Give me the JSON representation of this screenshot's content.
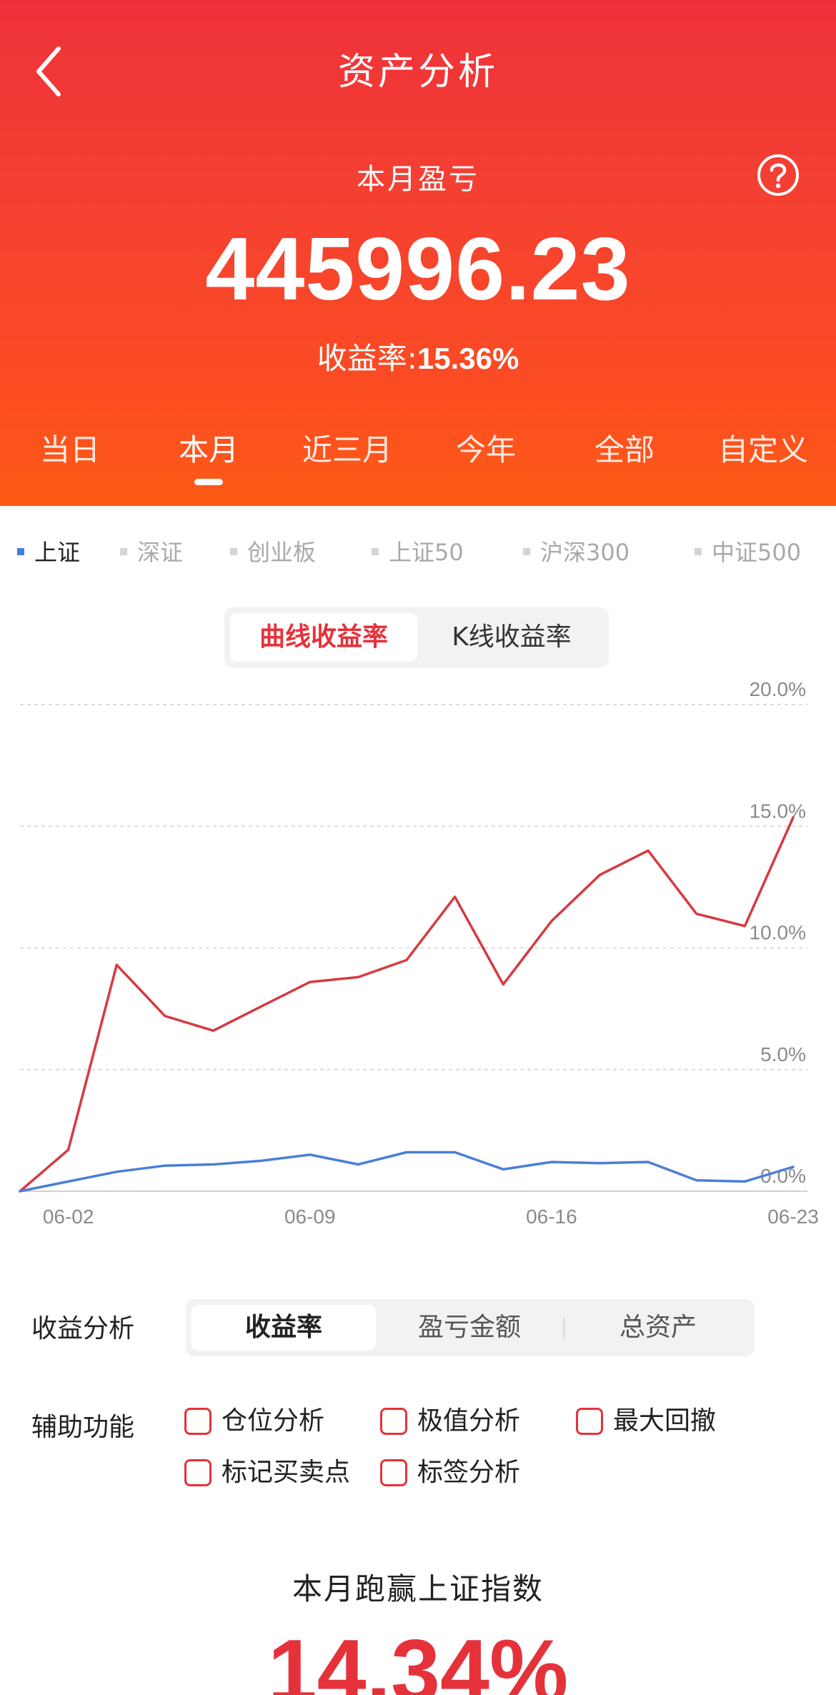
{
  "header": {
    "title": "资产分析",
    "period_label": "本月盈亏",
    "profit_amount": "445996.23",
    "yield_label": "收益率:",
    "yield_value": "15.36%"
  },
  "period_tabs": [
    {
      "label": "当日",
      "active": false
    },
    {
      "label": "本月",
      "active": true
    },
    {
      "label": "近三月",
      "active": false
    },
    {
      "label": "今年",
      "active": false
    },
    {
      "label": "全部",
      "active": false
    },
    {
      "label": "自定义",
      "active": false
    }
  ],
  "indices": [
    {
      "label": "上证",
      "active": true
    },
    {
      "label": "深证",
      "active": false
    },
    {
      "label": "创业板",
      "active": false
    },
    {
      "label": "上证50",
      "active": false
    },
    {
      "label": "沪深300",
      "active": false
    },
    {
      "label": "中证500",
      "active": false
    }
  ],
  "chart_toggle": {
    "options": [
      "曲线收益率",
      "K线收益率"
    ],
    "selected": "曲线收益率"
  },
  "chart_data": {
    "type": "line",
    "x": [
      "05-31",
      "06-02",
      "06-03",
      "06-04",
      "06-05",
      "06-06",
      "06-09",
      "06-10",
      "06-11",
      "06-12",
      "06-13",
      "06-16",
      "06-17",
      "06-18",
      "06-19",
      "06-20",
      "06-23"
    ],
    "x_ticks": [
      "06-02",
      "06-09",
      "06-16",
      "06-23"
    ],
    "y_ticks": [
      "20.0%",
      "15.0%",
      "10.0%",
      "5.0%",
      "0.0%"
    ],
    "ylim": [
      0,
      20
    ],
    "grid": true,
    "series": [
      {
        "color": "#d63a41",
        "values": [
          0.0,
          1.7,
          9.3,
          7.2,
          6.6,
          7.6,
          8.6,
          8.8,
          9.5,
          12.1,
          8.5,
          11.1,
          13.0,
          14.0,
          11.4,
          10.9,
          15.36
        ]
      },
      {
        "color": "#4a7fd6",
        "values": [
          0.0,
          0.4,
          0.8,
          1.05,
          1.1,
          1.25,
          1.5,
          1.1,
          1.6,
          1.6,
          0.9,
          1.2,
          1.15,
          1.2,
          0.45,
          0.4,
          1.0
        ]
      }
    ]
  },
  "analysis": {
    "label": "收益分析",
    "options": [
      "收益率",
      "盈亏金额",
      "总资产"
    ],
    "selected": "收益率"
  },
  "aux": {
    "label": "辅助功能",
    "items": [
      "仓位分析",
      "极值分析",
      "最大回撤",
      "标记买卖点",
      "标签分析"
    ]
  },
  "summary": {
    "title": "本月跑赢上证指数",
    "value": "14.34%"
  },
  "colors": {
    "accent_red": "#e5323a",
    "header_top": "#ee3139",
    "header_bottom": "#fe5b16",
    "index_blue": "#3f7fe0"
  },
  "icons": {
    "back": "chevron-left-icon",
    "help": "question-circle-icon"
  }
}
